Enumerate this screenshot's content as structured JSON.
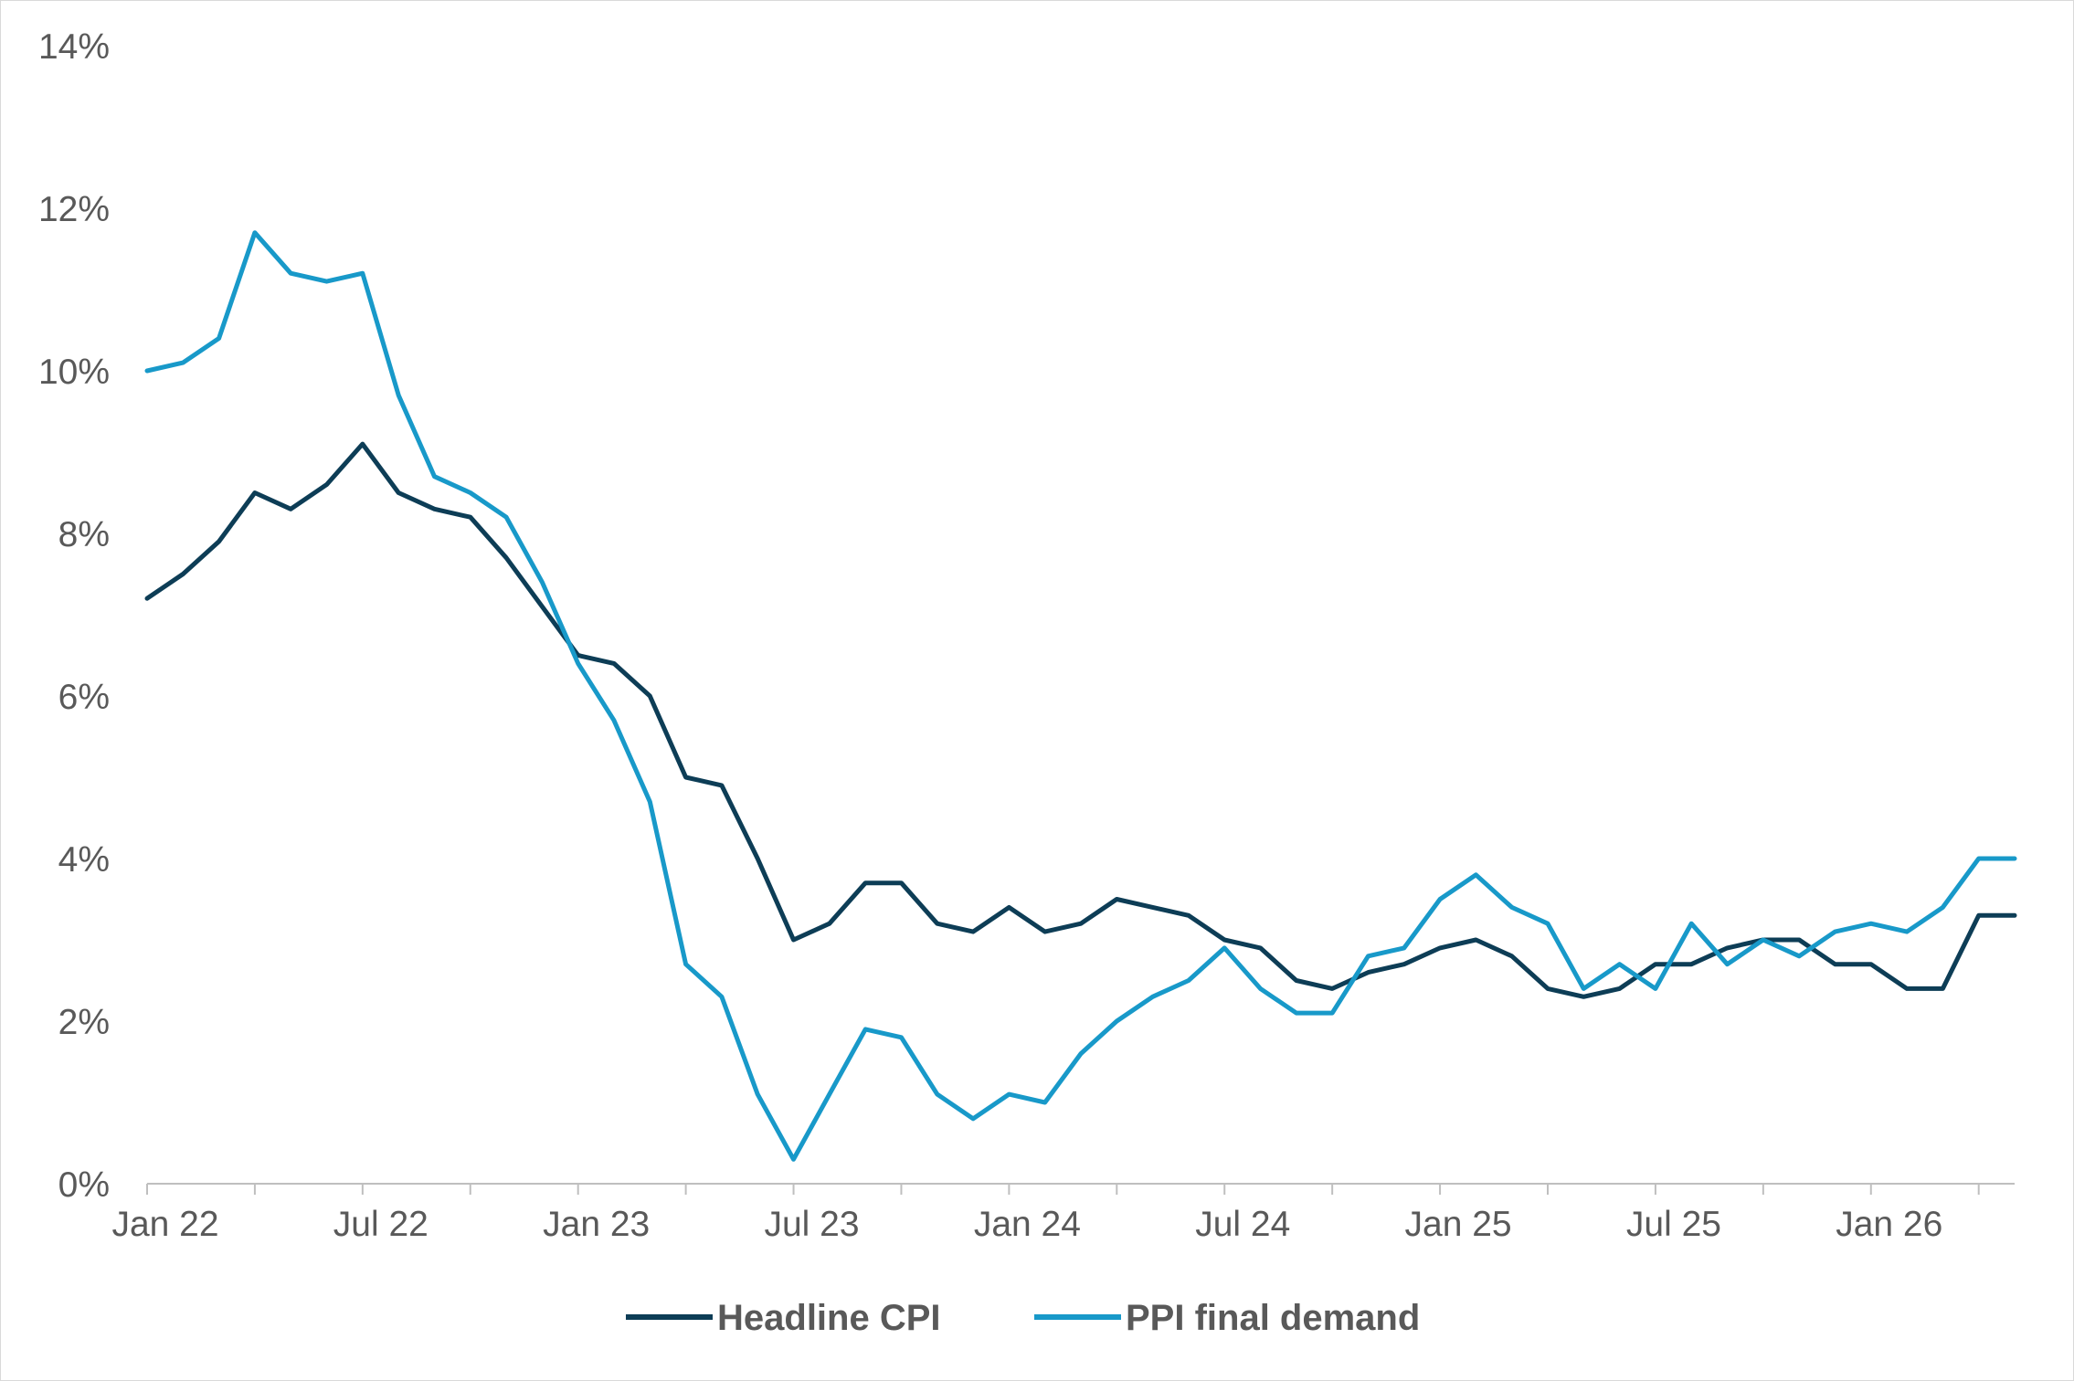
{
  "chart_data": {
    "type": "line",
    "title": "",
    "xlabel": "",
    "ylabel": "",
    "ylim": [
      0,
      14
    ],
    "y_ticks": [
      "0%",
      "2%",
      "4%",
      "6%",
      "8%",
      "10%",
      "12%",
      "14%"
    ],
    "x_tick_labels": [
      "Jan 22",
      "Jul 22",
      "Jan 23",
      "Jul 23",
      "Jan 24",
      "Jul 24",
      "Jan 25",
      "Jul 25",
      "Jan 26"
    ],
    "x": [
      "2022-01",
      "2022-02",
      "2022-03",
      "2022-04",
      "2022-05",
      "2022-06",
      "2022-07",
      "2022-08",
      "2022-09",
      "2022-10",
      "2022-11",
      "2022-12",
      "2023-01",
      "2023-02",
      "2023-03",
      "2023-04",
      "2023-05",
      "2023-06",
      "2023-07",
      "2023-08",
      "2023-09",
      "2023-10",
      "2023-11",
      "2023-12",
      "2024-01",
      "2024-02",
      "2024-03",
      "2024-04",
      "2024-05",
      "2024-06",
      "2024-07",
      "2024-08",
      "2024-09",
      "2024-10",
      "2024-11",
      "2024-12",
      "2025-01",
      "2025-02",
      "2025-03",
      "2025-04",
      "2025-05",
      "2025-06",
      "2025-07",
      "2025-08",
      "2025-09",
      "2025-10",
      "2025-11",
      "2025-12",
      "2026-01",
      "2026-02",
      "2026-03",
      "2026-04",
      "2026-05"
    ],
    "series": [
      {
        "name": "Headline CPI",
        "color": "#0d3d56",
        "values": [
          7.2,
          7.5,
          7.9,
          8.5,
          8.3,
          8.6,
          9.1,
          8.5,
          8.3,
          8.2,
          7.7,
          7.1,
          6.5,
          6.4,
          6.0,
          5.0,
          4.9,
          4.0,
          3.0,
          3.2,
          3.7,
          3.7,
          3.2,
          3.1,
          3.4,
          3.1,
          3.2,
          3.5,
          3.4,
          3.3,
          3.0,
          2.9,
          2.5,
          2.4,
          2.6,
          2.7,
          2.9,
          3.0,
          2.8,
          2.4,
          2.3,
          2.4,
          2.7,
          2.7,
          2.9,
          3.0,
          3.0,
          2.7,
          2.7,
          2.4,
          2.4,
          3.3,
          3.3
        ]
      },
      {
        "name": "PPI final demand",
        "color": "#1899c9",
        "values": [
          10.0,
          10.1,
          10.4,
          11.7,
          11.2,
          11.1,
          11.2,
          9.7,
          8.7,
          8.5,
          8.2,
          7.4,
          6.4,
          5.7,
          4.7,
          2.7,
          2.3,
          1.1,
          0.3,
          1.1,
          1.9,
          1.8,
          1.1,
          0.8,
          1.1,
          1.0,
          1.6,
          2.0,
          2.3,
          2.5,
          2.9,
          2.4,
          2.1,
          2.1,
          2.8,
          2.9,
          3.5,
          3.8,
          3.4,
          3.2,
          2.4,
          2.7,
          2.4,
          3.2,
          2.7,
          3.0,
          2.8,
          3.1,
          3.2,
          3.1,
          3.4,
          4.0,
          4.0
        ]
      }
    ],
    "grid": false,
    "legend_position": "bottom-center"
  }
}
